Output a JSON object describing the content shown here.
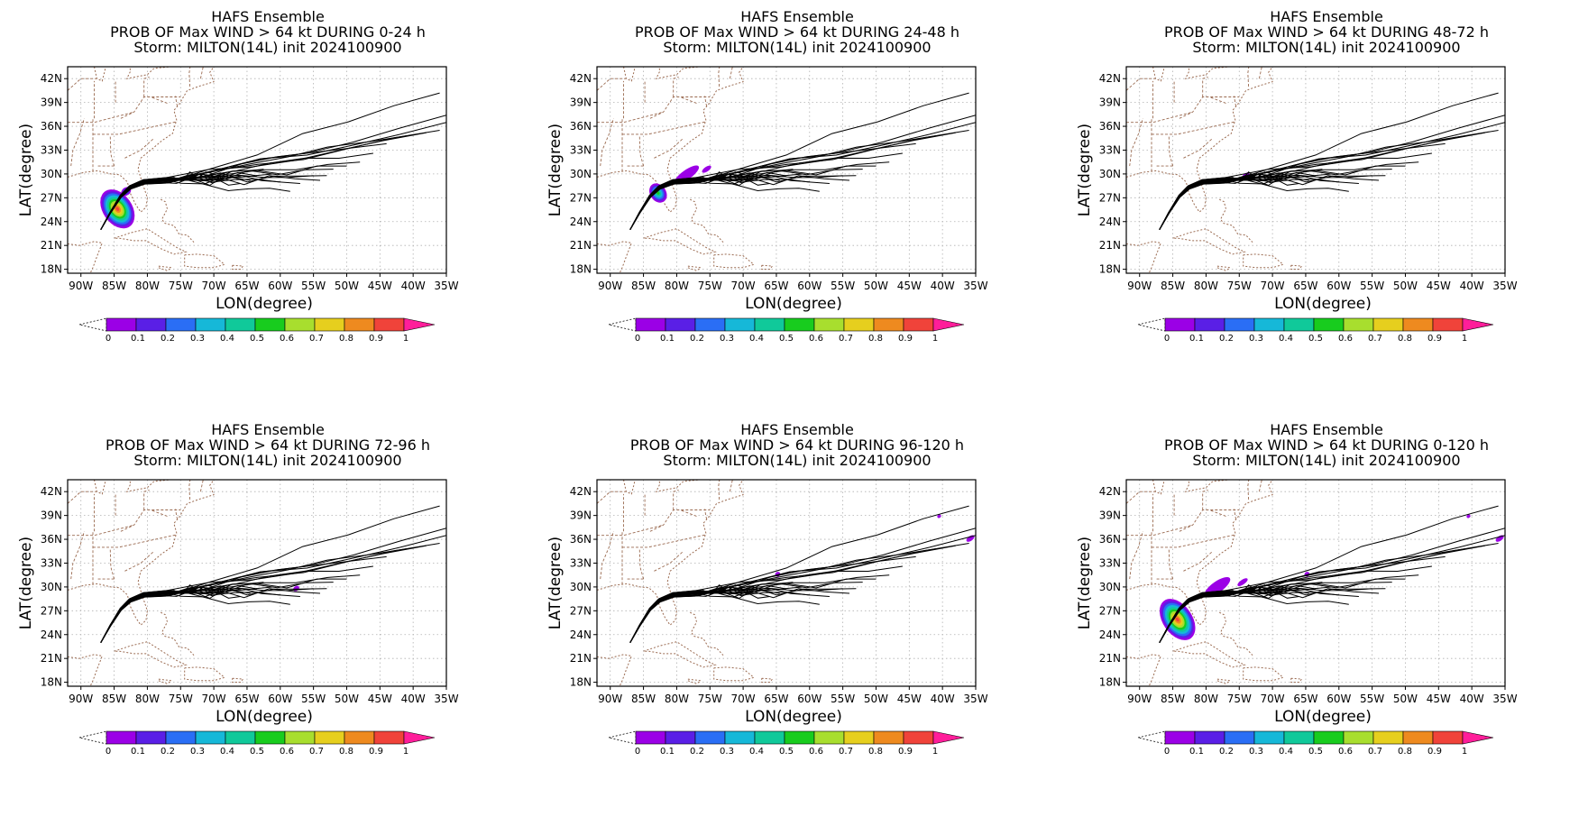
{
  "colors": {
    "state_border": "#9a6a50",
    "grid": "#b0b0b0",
    "track": "#000000",
    "colorbar": [
      "#9b00e6",
      "#5a1fe6",
      "#2a6ef5",
      "#16b8d8",
      "#10c99a",
      "#18cc1e",
      "#a8de2e",
      "#e6cf1e",
      "#ee8a1f",
      "#f0433a",
      "#ff1e9a"
    ]
  },
  "chart_data": [
    {
      "type": "heatmap",
      "title": "HAFS Ensemble",
      "subtitle": "PROB OF Max WIND > 64 kt DURING  0-24 h",
      "storm": "Storm: MILTON(14L) init 2024100900",
      "xlabel": "LON(degree)",
      "ylabel": "LAT(degree)",
      "xlim": [
        -92,
        -35
      ],
      "ylim": [
        17.5,
        43.5
      ],
      "xticks": [
        "90W",
        "85W",
        "80W",
        "75W",
        "70W",
        "65W",
        "60W",
        "55W",
        "50W",
        "45W",
        "40W",
        "35W"
      ],
      "yticks": [
        "42N",
        "39N",
        "36N",
        "33N",
        "30N",
        "27N",
        "24N",
        "21N",
        "18N"
      ],
      "grid": true,
      "colorbar_ticks": [
        "0",
        "0.1",
        "0.2",
        "0.3",
        "0.4",
        "0.5",
        "0.6",
        "0.7",
        "0.8",
        "0.9",
        "1"
      ],
      "prob_blobs": [
        {
          "lon": -84.5,
          "lat": 25.6,
          "rlon": 2.2,
          "rlat": 2.7,
          "value": 0.95
        },
        {
          "lon": -83.2,
          "lat": 27.8,
          "rlon": 0.8,
          "rlat": 0.5,
          "value": 0.4
        }
      ]
    },
    {
      "type": "heatmap",
      "title": "HAFS Ensemble",
      "subtitle": "PROB OF Max WIND > 64 kt DURING 24-48 h",
      "storm": "Storm: MILTON(14L) init 2024100900",
      "xlabel": "LON(degree)",
      "ylabel": "LAT(degree)",
      "xlim": [
        -92,
        -35
      ],
      "ylim": [
        17.5,
        43.5
      ],
      "xticks": [
        "90W",
        "85W",
        "80W",
        "75W",
        "70W",
        "65W",
        "60W",
        "55W",
        "50W",
        "45W",
        "40W",
        "35W"
      ],
      "yticks": [
        "42N",
        "39N",
        "36N",
        "33N",
        "30N",
        "27N",
        "24N",
        "21N",
        "18N"
      ],
      "grid": true,
      "colorbar_ticks": [
        "0",
        "0.1",
        "0.2",
        "0.3",
        "0.4",
        "0.5",
        "0.6",
        "0.7",
        "0.8",
        "0.9",
        "1"
      ],
      "prob_blobs": [
        {
          "lon": -82.8,
          "lat": 27.6,
          "rlon": 1.2,
          "rlat": 1.3,
          "value": 0.55
        },
        {
          "lon": -78.5,
          "lat": 29.9,
          "rlon": 2.2,
          "rlat": 0.6,
          "value": 0.1
        },
        {
          "lon": -75.5,
          "lat": 30.6,
          "rlon": 0.8,
          "rlat": 0.3,
          "value": 0.05
        }
      ]
    },
    {
      "type": "heatmap",
      "title": "HAFS Ensemble",
      "subtitle": "PROB OF Max WIND > 64 kt DURING 48-72 h",
      "storm": "Storm: MILTON(14L) init 2024100900",
      "xlabel": "LON(degree)",
      "ylabel": "LAT(degree)",
      "xlim": [
        -92,
        -35
      ],
      "ylim": [
        17.5,
        43.5
      ],
      "xticks": [
        "90W",
        "85W",
        "80W",
        "75W",
        "70W",
        "65W",
        "60W",
        "55W",
        "50W",
        "45W",
        "40W",
        "35W"
      ],
      "yticks": [
        "42N",
        "39N",
        "36N",
        "33N",
        "30N",
        "27N",
        "24N",
        "21N",
        "18N"
      ],
      "grid": true,
      "colorbar_ticks": [
        "0",
        "0.1",
        "0.2",
        "0.3",
        "0.4",
        "0.5",
        "0.6",
        "0.7",
        "0.8",
        "0.9",
        "1"
      ],
      "prob_blobs": [
        {
          "lon": -74.0,
          "lat": 29.8,
          "rlon": 0.6,
          "rlat": 0.3,
          "value": 0.05
        }
      ]
    },
    {
      "type": "heatmap",
      "title": "HAFS Ensemble",
      "subtitle": "PROB OF Max WIND > 64 kt DURING 72-96 h",
      "storm": "Storm: MILTON(14L) init 2024100900",
      "xlabel": "LON(degree)",
      "ylabel": "LAT(degree)",
      "xlim": [
        -92,
        -35
      ],
      "ylim": [
        17.5,
        43.5
      ],
      "xticks": [
        "90W",
        "85W",
        "80W",
        "75W",
        "70W",
        "65W",
        "60W",
        "55W",
        "50W",
        "45W",
        "40W",
        "35W"
      ],
      "yticks": [
        "42N",
        "39N",
        "36N",
        "33N",
        "30N",
        "27N",
        "24N",
        "21N",
        "18N"
      ],
      "grid": true,
      "colorbar_ticks": [
        "0",
        "0.1",
        "0.2",
        "0.3",
        "0.4",
        "0.5",
        "0.6",
        "0.7",
        "0.8",
        "0.9",
        "1"
      ],
      "prob_blobs": [
        {
          "lon": -57.6,
          "lat": 29.8,
          "rlon": 0.5,
          "rlat": 0.3,
          "value": 0.05
        }
      ]
    },
    {
      "type": "heatmap",
      "title": "HAFS Ensemble",
      "subtitle": "PROB OF Max WIND > 64 kt DURING 96-120 h",
      "storm": "Storm: MILTON(14L) init 2024100900",
      "xlabel": "LON(degree)",
      "ylabel": "LAT(degree)",
      "xlim": [
        -92,
        -35
      ],
      "ylim": [
        17.5,
        43.5
      ],
      "xticks": [
        "90W",
        "85W",
        "80W",
        "75W",
        "70W",
        "65W",
        "60W",
        "55W",
        "50W",
        "45W",
        "40W",
        "35W"
      ],
      "yticks": [
        "42N",
        "39N",
        "36N",
        "33N",
        "30N",
        "27N",
        "24N",
        "21N",
        "18N"
      ],
      "grid": true,
      "colorbar_ticks": [
        "0",
        "0.1",
        "0.2",
        "0.3",
        "0.4",
        "0.5",
        "0.6",
        "0.7",
        "0.8",
        "0.9",
        "1"
      ],
      "prob_blobs": [
        {
          "lon": -64.8,
          "lat": 31.6,
          "rlon": 0.4,
          "rlat": 0.3,
          "value": 0.05
        },
        {
          "lon": -35.8,
          "lat": 36.1,
          "rlon": 0.7,
          "rlat": 0.3,
          "value": 0.05
        },
        {
          "lon": -40.5,
          "lat": 38.9,
          "rlon": 0.3,
          "rlat": 0.2,
          "value": 0.05
        }
      ]
    },
    {
      "type": "heatmap",
      "title": "HAFS Ensemble",
      "subtitle": "PROB OF Max WIND > 64 kt DURING 0-120 h",
      "storm": "Storm: MILTON(14L) init 2024100900",
      "xlabel": "LON(degree)",
      "ylabel": "LAT(degree)",
      "xlim": [
        -92,
        -35
      ],
      "ylim": [
        17.5,
        43.5
      ],
      "xticks": [
        "90W",
        "85W",
        "80W",
        "75W",
        "70W",
        "65W",
        "60W",
        "55W",
        "50W",
        "45W",
        "40W",
        "35W"
      ],
      "yticks": [
        "42N",
        "39N",
        "36N",
        "33N",
        "30N",
        "27N",
        "24N",
        "21N",
        "18N"
      ],
      "grid": true,
      "colorbar_ticks": [
        "0",
        "0.1",
        "0.2",
        "0.3",
        "0.4",
        "0.5",
        "0.6",
        "0.7",
        "0.8",
        "0.9",
        "1"
      ],
      "prob_blobs": [
        {
          "lon": -84.3,
          "lat": 25.9,
          "rlon": 2.2,
          "rlat": 2.9,
          "value": 0.95
        },
        {
          "lon": -78.3,
          "lat": 30.0,
          "rlon": 2.3,
          "rlat": 0.7,
          "value": 0.1
        },
        {
          "lon": -74.5,
          "lat": 30.6,
          "rlon": 0.9,
          "rlat": 0.3,
          "value": 0.05
        },
        {
          "lon": -64.8,
          "lat": 31.6,
          "rlon": 0.4,
          "rlat": 0.3,
          "value": 0.05
        },
        {
          "lon": -35.8,
          "lat": 36.1,
          "rlon": 0.7,
          "rlat": 0.3,
          "value": 0.05
        },
        {
          "lon": -40.5,
          "lat": 38.9,
          "rlon": 0.3,
          "rlat": 0.2,
          "value": 0.05
        }
      ]
    }
  ],
  "tracks": {
    "start": [
      -87.0,
      23.0
    ],
    "path": [
      [
        -87.0,
        23.0
      ],
      [
        -85.6,
        25.1
      ],
      [
        -84.0,
        27.2
      ],
      [
        -82.6,
        28.3
      ],
      [
        -80.5,
        29.0
      ],
      [
        -77.0,
        29.2
      ]
    ],
    "ends": [
      [
        -36.0,
        40.2
      ],
      [
        -35.0,
        37.4
      ],
      [
        -35.0,
        36.5
      ],
      [
        -36.0,
        35.5
      ],
      [
        -38.0,
        35.2
      ],
      [
        -41.0,
        34.8
      ],
      [
        -44.0,
        33.8
      ],
      [
        -46.0,
        32.6
      ],
      [
        -48.0,
        31.5
      ],
      [
        -50.0,
        31.0
      ],
      [
        -52.0,
        30.6
      ],
      [
        -53.0,
        29.8
      ],
      [
        -54.0,
        29.2
      ],
      [
        -55.0,
        29.8
      ],
      [
        -57.0,
        28.8
      ],
      [
        -58.5,
        27.8
      ],
      [
        -60.0,
        29.0
      ],
      [
        -61.0,
        30.0
      ],
      [
        -62.5,
        30.6
      ],
      [
        -63.5,
        29.8
      ],
      [
        -64.5,
        29.2
      ],
      [
        -66.0,
        28.8
      ],
      [
        -67.0,
        29.6
      ],
      [
        -68.0,
        30.2
      ],
      [
        -69.0,
        29.8
      ],
      [
        -70.0,
        30.0
      ]
    ]
  }
}
